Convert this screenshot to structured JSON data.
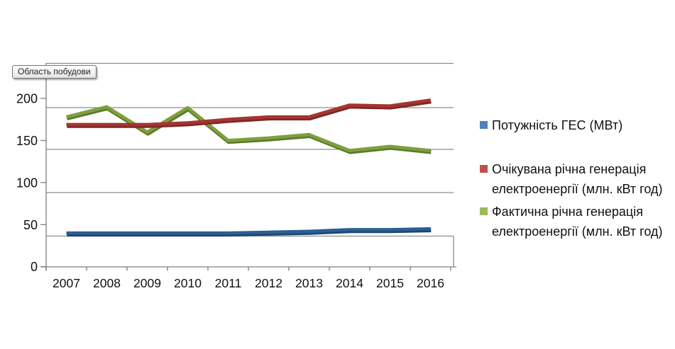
{
  "window": {
    "tooltip_label": "Область побудови"
  },
  "chart_data": {
    "type": "line",
    "title": "",
    "xlabel": "",
    "ylabel": "",
    "categories": [
      "2007",
      "2008",
      "2009",
      "2010",
      "2011",
      "2012",
      "2013",
      "2014",
      "2015",
      "2016"
    ],
    "series": [
      {
        "key": "capacity",
        "name": "Потужність ГЕС (МВт)",
        "swatch_color": "#4F81BD",
        "line_color": "#2B5F94",
        "shadow_color": "#1D4570",
        "values": [
          40,
          40,
          40,
          40,
          40,
          41,
          42,
          44,
          44,
          45
        ]
      },
      {
        "key": "expected-generation",
        "name": "Очікувана річна генерація\nелектроенергії (млн. кВт год)",
        "swatch_color": "#C0504D",
        "line_color": "#A43531",
        "shadow_color": "#7E2725",
        "values": [
          169,
          169,
          169,
          171,
          175,
          178,
          178,
          192,
          191,
          198
        ]
      },
      {
        "key": "actual-generation",
        "name": "Фактична річна генерація\nелектроенергії (млн. кВт год)",
        "swatch_color": "#9BBB59",
        "line_color": "#7E9F3F",
        "shadow_color": "#5E7A29",
        "values": [
          178,
          190,
          160,
          189,
          150,
          153,
          157,
          138,
          143,
          138
        ]
      }
    ],
    "yticks": [
      0,
      50,
      100,
      150,
      200
    ],
    "ylim": [
      0,
      200
    ],
    "grid": true,
    "legend_position": "right",
    "axis_color": "#7F7F7F",
    "grid_color": "#8C8C8C",
    "text_color": "#111111"
  }
}
